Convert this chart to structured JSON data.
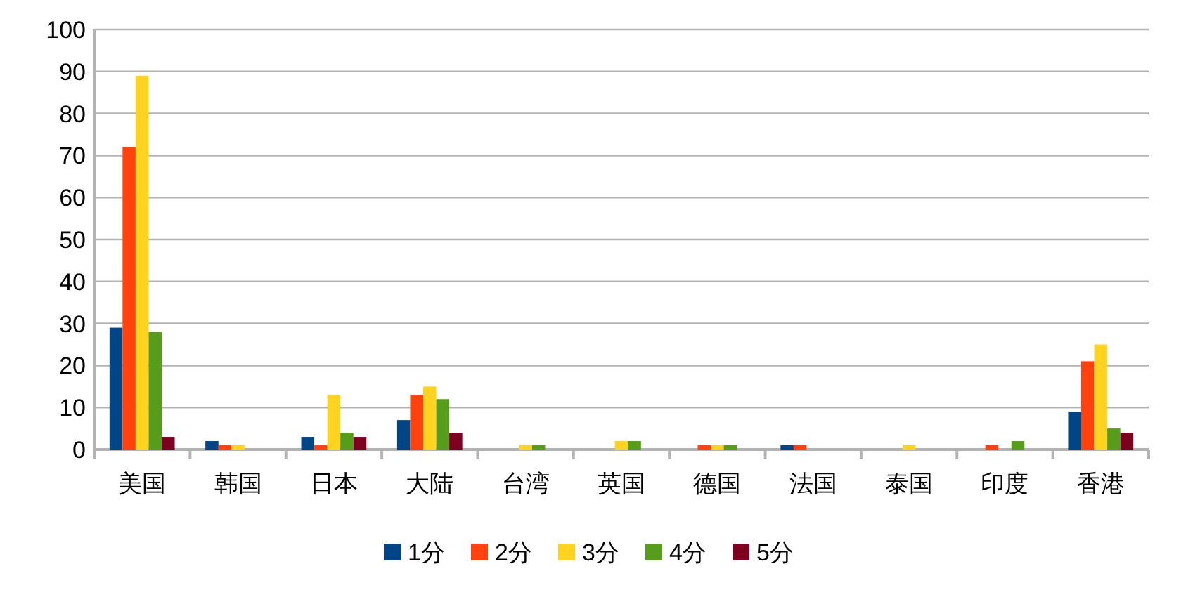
{
  "chart_data": {
    "type": "bar",
    "categories": [
      "美国",
      "韩国",
      "日本",
      "大陆",
      "台湾",
      "英国",
      "德国",
      "法国",
      "泰国",
      "印度",
      "香港"
    ],
    "series": [
      {
        "name": "1分",
        "color": "#004586",
        "values": [
          29,
          2,
          3,
          7,
          0,
          0,
          0,
          1,
          0,
          0,
          9
        ]
      },
      {
        "name": "2分",
        "color": "#ff420e",
        "values": [
          72,
          1,
          1,
          13,
          0,
          0,
          1,
          1,
          0,
          1,
          21
        ]
      },
      {
        "name": "3分",
        "color": "#ffd320",
        "values": [
          89,
          1,
          13,
          15,
          1,
          2,
          1,
          0,
          1,
          0,
          25
        ]
      },
      {
        "name": "4分",
        "color": "#579d1c",
        "values": [
          28,
          0,
          4,
          12,
          1,
          2,
          1,
          0,
          0,
          2,
          5
        ]
      },
      {
        "name": "5分",
        "color": "#7e0021",
        "values": [
          3,
          0,
          3,
          4,
          0,
          0,
          0,
          0,
          0,
          0,
          4
        ]
      }
    ],
    "ylim": [
      0,
      100
    ],
    "yticks": [
      0,
      10,
      20,
      30,
      40,
      50,
      60,
      70,
      80,
      90,
      100
    ],
    "grid": "y",
    "legend": "bottom"
  }
}
